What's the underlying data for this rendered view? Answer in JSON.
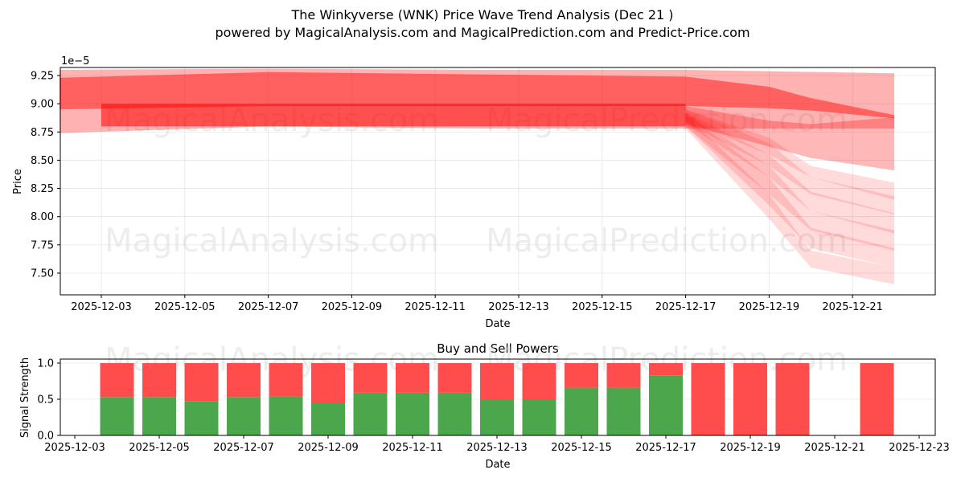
{
  "header": {
    "title": "The Winkyverse (WNK) Price Wave Trend Analysis (Dec 21 )",
    "subtitle": "powered by MagicalAnalysis.com and MagicalPrediction.com and Predict-Price.com"
  },
  "watermarks": [
    "MagicalAnalysis.com",
    "MagicalPrediction.com"
  ],
  "colors": {
    "band": "#ff0000",
    "buy": "#4ca64c",
    "sell": "#ff4c4c",
    "grid": "#e6e6e6"
  },
  "chart_data": [
    {
      "type": "area",
      "title": "",
      "xlabel": "Date",
      "ylabel": "Price",
      "y_scale_label": "1e−5",
      "ylim": [
        7.31,
        9.33
      ],
      "y_ticks": [
        "7.50",
        "7.75",
        "8.00",
        "8.25",
        "8.50",
        "8.75",
        "9.00",
        "9.25"
      ],
      "x_ticks": [
        "2025-12-03",
        "2025-12-05",
        "2025-12-07",
        "2025-12-09",
        "2025-12-11",
        "2025-12-13",
        "2025-12-15",
        "2025-12-17",
        "2025-12-19",
        "2025-12-21"
      ],
      "grid": true,
      "description": "Overlapping semi-transparent red price-wave bands; flat around 8.8-9.3 (x1e-5) from Dec 2 to Dec 17, then fanning downward to 7.4-8.3 by Dec 22, with upper bands staying near 8.8-9.3.",
      "series": [
        {
          "name": "upper-band",
          "x": [
            "2025-12-02",
            "2025-12-07",
            "2025-12-12",
            "2025-12-17",
            "2025-12-19",
            "2025-12-20",
            "2025-12-22"
          ],
          "upper": [
            9.23,
            9.28,
            9.26,
            9.24,
            9.15,
            9.05,
            8.9
          ],
          "lower": [
            8.95,
            8.98,
            8.98,
            8.98,
            8.96,
            8.94,
            8.87
          ]
        },
        {
          "name": "outer-band",
          "x": [
            "2025-12-02",
            "2025-12-07",
            "2025-12-12",
            "2025-12-17",
            "2025-12-22"
          ],
          "upper": [
            9.3,
            9.31,
            9.3,
            9.3,
            9.27
          ],
          "lower": [
            8.74,
            8.8,
            8.78,
            8.78,
            8.78
          ]
        },
        {
          "name": "core-band",
          "x": [
            "2025-12-03",
            "2025-12-07",
            "2025-12-12",
            "2025-12-17"
          ],
          "upper": [
            9.0,
            9.0,
            9.0,
            9.0
          ],
          "lower": [
            8.8,
            8.8,
            8.8,
            8.8
          ]
        },
        {
          "name": "wide-lower-band",
          "x": [
            "2025-12-17",
            "2025-12-19",
            "2025-12-20",
            "2025-12-22"
          ],
          "upper": [
            8.98,
            8.85,
            8.82,
            8.88
          ],
          "lower": [
            8.82,
            8.62,
            8.52,
            8.41
          ]
        },
        {
          "name": "fan-1",
          "x": [
            "2025-12-17",
            "2025-12-19",
            "2025-12-20",
            "2025-12-22"
          ],
          "upper": [
            8.95,
            8.7,
            8.45,
            8.3
          ],
          "lower": [
            8.85,
            8.55,
            8.35,
            8.15
          ]
        },
        {
          "name": "fan-2",
          "x": [
            "2025-12-17",
            "2025-12-19",
            "2025-12-20",
            "2025-12-22"
          ],
          "upper": [
            8.95,
            8.65,
            8.35,
            8.18
          ],
          "lower": [
            8.83,
            8.45,
            8.2,
            8.02
          ]
        },
        {
          "name": "fan-3",
          "x": [
            "2025-12-17",
            "2025-12-19",
            "2025-12-20",
            "2025-12-22"
          ],
          "upper": [
            8.93,
            8.55,
            8.22,
            8.03
          ],
          "lower": [
            8.82,
            8.35,
            8.05,
            7.85
          ]
        },
        {
          "name": "fan-4",
          "x": [
            "2025-12-17",
            "2025-12-19",
            "2025-12-20",
            "2025-12-22"
          ],
          "upper": [
            8.92,
            8.45,
            8.05,
            7.88
          ],
          "lower": [
            8.8,
            8.2,
            7.88,
            7.7
          ]
        },
        {
          "name": "fan-5",
          "x": [
            "2025-12-17",
            "2025-12-19",
            "2025-12-20",
            "2025-12-22"
          ],
          "upper": [
            8.92,
            8.35,
            7.9,
            7.72
          ],
          "lower": [
            8.8,
            8.1,
            7.72,
            7.55
          ]
        },
        {
          "name": "fan-6",
          "x": [
            "2025-12-17",
            "2025-12-19",
            "2025-12-20",
            "2025-12-22"
          ],
          "upper": [
            8.9,
            8.2,
            7.7,
            7.55
          ],
          "lower": [
            8.78,
            7.98,
            7.55,
            7.4
          ]
        }
      ]
    },
    {
      "type": "bar",
      "title": "Buy and Sell Powers",
      "xlabel": "Date",
      "ylabel": "Signal Strength",
      "ylim": [
        0.0,
        1.05
      ],
      "y_ticks": [
        "0.0",
        "0.5",
        "1.0"
      ],
      "x_ticks": [
        "2025-12-03",
        "2025-12-05",
        "2025-12-07",
        "2025-12-09",
        "2025-12-11",
        "2025-12-13",
        "2025-12-15",
        "2025-12-17",
        "2025-12-19",
        "2025-12-21",
        "2025-12-23"
      ],
      "grid": true,
      "stacked": true,
      "categories": [
        "2025-12-04",
        "2025-12-05",
        "2025-12-06",
        "2025-12-07",
        "2025-12-08",
        "2025-12-09",
        "2025-12-10",
        "2025-12-11",
        "2025-12-12",
        "2025-12-13",
        "2025-12-14",
        "2025-12-15",
        "2025-12-16",
        "2025-12-17",
        "2025-12-18",
        "2025-12-19",
        "2025-12-20",
        "2025-12-22"
      ],
      "series": [
        {
          "name": "Buy",
          "values": [
            0.53,
            0.53,
            0.47,
            0.53,
            0.54,
            0.45,
            0.59,
            0.59,
            0.59,
            0.5,
            0.5,
            0.66,
            0.66,
            0.83,
            0.0,
            0.0,
            0.0,
            0.0
          ]
        },
        {
          "name": "Sell",
          "values": [
            0.47,
            0.47,
            0.53,
            0.47,
            0.46,
            0.55,
            0.41,
            0.41,
            0.41,
            0.5,
            0.5,
            0.34,
            0.34,
            0.17,
            1.0,
            1.0,
            1.0,
            1.0
          ]
        }
      ]
    }
  ]
}
